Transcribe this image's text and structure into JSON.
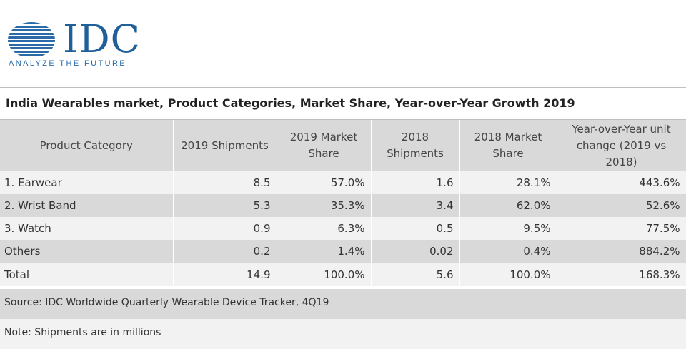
{
  "brand": {
    "logo_text": "IDC",
    "tagline": "ANALYZE THE FUTURE",
    "color": "#1f5f9a"
  },
  "title": "India Wearables market, Product Categories, Market Share, Year-over-Year Growth 2019",
  "chart_data": {
    "type": "table",
    "columns": [
      "Product Category",
      "2019 Shipments",
      "2019 Market Share",
      "2018 Shipments",
      "2018 Market Share",
      "Year-over-Year unit change (2019 vs 2018)"
    ],
    "rows": [
      [
        "1. Earwear",
        "8.5",
        "57.0%",
        "1.6",
        "28.1%",
        "443.6%"
      ],
      [
        "2. Wrist Band",
        "5.3",
        "35.3%",
        "3.4",
        "62.0%",
        "52.6%"
      ],
      [
        "3. Watch",
        "0.9",
        "6.3%",
        "0.5",
        "9.5%",
        "77.5%"
      ],
      [
        "Others",
        "0.2",
        "1.4%",
        "0.02",
        "0.4%",
        "884.2%"
      ],
      [
        "Total",
        "14.9",
        "100.0%",
        "5.6",
        "100.0%",
        "168.3%"
      ]
    ]
  },
  "header_lines": [
    [
      "Product Category"
    ],
    [
      "2019 Shipments"
    ],
    [
      "2019 Market",
      "Share"
    ],
    [
      "2018",
      "Shipments"
    ],
    [
      "2018 Market",
      "Share"
    ],
    [
      "Year-over-Year unit",
      "change (2019 vs 2018)"
    ]
  ],
  "source": "Source: IDC Worldwide Quarterly Wearable Device Tracker, 4Q19",
  "note": "Note: Shipments are in millions"
}
